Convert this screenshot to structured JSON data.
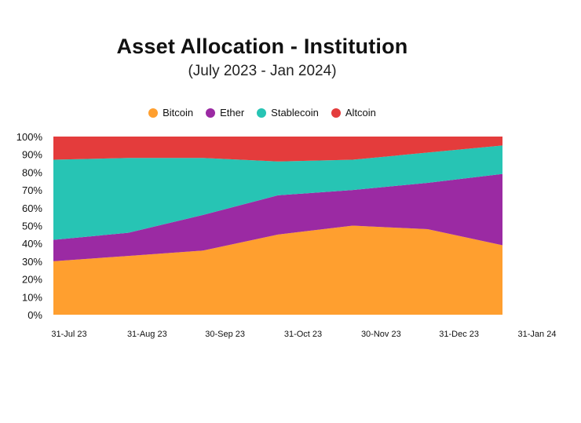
{
  "chart_data": {
    "type": "area",
    "stacked": "percent",
    "title": "Asset Allocation - Institution",
    "subtitle": "(July 2023 - Jan 2024)",
    "categories": [
      "31-Jul 23",
      "31-Aug 23",
      "30-Sep 23",
      "31-Oct 23",
      "30-Nov 23",
      "31-Dec 23",
      "31-Jan 24"
    ],
    "series": [
      {
        "name": "Bitcoin",
        "color": "#ff9f2f",
        "values": [
          30,
          33,
          36,
          45,
          50,
          48,
          39
        ]
      },
      {
        "name": "Ether",
        "color": "#9b2aa3",
        "values": [
          12,
          13,
          20,
          22,
          20,
          26,
          40
        ]
      },
      {
        "name": "Stablecoin",
        "color": "#27c4b4",
        "values": [
          45,
          42,
          32,
          19,
          17,
          17,
          16
        ]
      },
      {
        "name": "Altcoin",
        "color": "#e43c3c",
        "values": [
          13,
          12,
          12,
          14,
          13,
          9,
          5
        ]
      }
    ],
    "ylim": [
      0,
      100
    ],
    "yticks": [
      "0%",
      "10%",
      "20%",
      "30%",
      "40%",
      "50%",
      "60%",
      "70%",
      "80%",
      "90%",
      "100%"
    ],
    "legend_position": "top"
  }
}
